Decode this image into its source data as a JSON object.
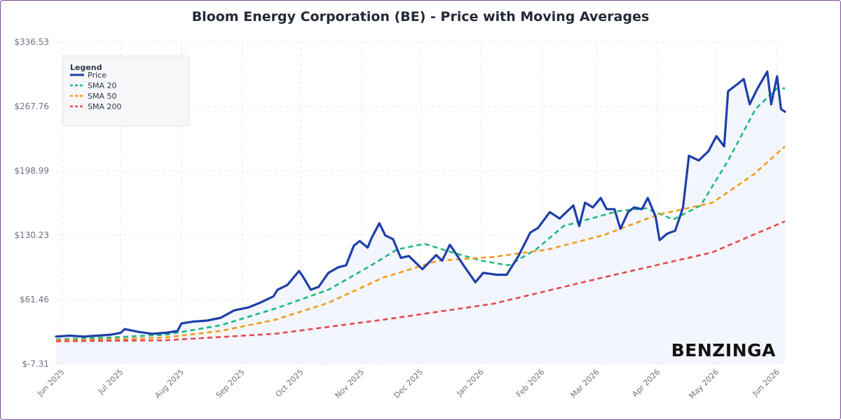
{
  "chart_data": {
    "type": "line",
    "title": "Bloom Energy Corporation (BE) - Price with Moving Averages",
    "xlabel": "",
    "ylabel": "",
    "ylim": [
      -7.31,
      336.53
    ],
    "y_ticks": [
      "$-7.31",
      "$61.46",
      "$130.23",
      "$198.99",
      "$267.76",
      "$336.53"
    ],
    "x_ticks": [
      "Jun 2025",
      "Jul 2025",
      "Aug 2025",
      "Sep 2025",
      "Oct 2025",
      "Nov 2025",
      "Dec 2025",
      "Jan 2026",
      "Feb 2026",
      "Mar 2026",
      "Apr 2026",
      "May 2026",
      "Jun 2026"
    ],
    "x_range": [
      "2025-05-29",
      "2026-06-05"
    ],
    "grid": true,
    "legend_title": "Legend",
    "legend_position": "top-left",
    "watermark": "BENZINGA",
    "series": [
      {
        "name": "Price",
        "color": "#1e3fa8",
        "style": "solid",
        "points": [
          [
            "2025-05-29",
            22
          ],
          [
            "2025-06-05",
            23
          ],
          [
            "2025-06-12",
            22
          ],
          [
            "2025-06-19",
            23
          ],
          [
            "2025-06-26",
            24
          ],
          [
            "2025-07-01",
            26
          ],
          [
            "2025-07-03",
            30
          ],
          [
            "2025-07-10",
            27
          ],
          [
            "2025-07-17",
            25
          ],
          [
            "2025-07-24",
            26
          ],
          [
            "2025-07-30",
            28
          ],
          [
            "2025-08-01",
            36
          ],
          [
            "2025-08-07",
            38
          ],
          [
            "2025-08-14",
            39
          ],
          [
            "2025-08-21",
            42
          ],
          [
            "2025-08-28",
            50
          ],
          [
            "2025-09-04",
            53
          ],
          [
            "2025-09-10",
            58
          ],
          [
            "2025-09-17",
            65
          ],
          [
            "2025-09-19",
            72
          ],
          [
            "2025-09-24",
            77
          ],
          [
            "2025-09-30",
            92
          ],
          [
            "2025-10-02",
            86
          ],
          [
            "2025-10-06",
            72
          ],
          [
            "2025-10-10",
            75
          ],
          [
            "2025-10-15",
            90
          ],
          [
            "2025-10-20",
            96
          ],
          [
            "2025-10-24",
            98
          ],
          [
            "2025-10-28",
            119
          ],
          [
            "2025-10-31",
            124
          ],
          [
            "2025-11-04",
            117
          ],
          [
            "2025-11-06",
            127
          ],
          [
            "2025-11-10",
            143
          ],
          [
            "2025-11-13",
            130
          ],
          [
            "2025-11-17",
            126
          ],
          [
            "2025-11-21",
            106
          ],
          [
            "2025-11-25",
            108
          ],
          [
            "2025-12-02",
            94
          ],
          [
            "2025-12-09",
            109
          ],
          [
            "2025-12-12",
            103
          ],
          [
            "2025-12-16",
            120
          ],
          [
            "2025-12-18",
            114
          ],
          [
            "2025-12-23",
            98
          ],
          [
            "2025-12-29",
            80
          ],
          [
            "2026-01-02",
            90
          ],
          [
            "2026-01-09",
            88
          ],
          [
            "2026-01-14",
            88
          ],
          [
            "2026-01-20",
            108
          ],
          [
            "2026-01-26",
            133
          ],
          [
            "2026-01-30",
            138
          ],
          [
            "2026-02-05",
            155
          ],
          [
            "2026-02-10",
            148
          ],
          [
            "2026-02-17",
            162
          ],
          [
            "2026-02-20",
            140
          ],
          [
            "2026-02-23",
            165
          ],
          [
            "2026-02-27",
            160
          ],
          [
            "2026-03-03",
            170
          ],
          [
            "2026-03-06",
            158
          ],
          [
            "2026-03-10",
            158
          ],
          [
            "2026-03-13",
            137
          ],
          [
            "2026-03-17",
            155
          ],
          [
            "2026-03-20",
            160
          ],
          [
            "2026-03-24",
            158
          ],
          [
            "2026-03-27",
            170
          ],
          [
            "2026-03-31",
            150
          ],
          [
            "2026-04-02",
            125
          ],
          [
            "2026-04-06",
            132
          ],
          [
            "2026-04-10",
            135
          ],
          [
            "2026-04-14",
            160
          ],
          [
            "2026-04-17",
            215
          ],
          [
            "2026-04-22",
            210
          ],
          [
            "2026-04-27",
            220
          ],
          [
            "2026-05-01",
            236
          ],
          [
            "2026-05-05",
            225
          ],
          [
            "2026-05-07",
            284
          ],
          [
            "2026-05-12",
            292
          ],
          [
            "2026-05-15",
            297
          ],
          [
            "2026-05-18",
            270
          ],
          [
            "2026-05-22",
            287
          ],
          [
            "2026-05-27",
            305
          ],
          [
            "2026-05-29",
            270
          ],
          [
            "2026-06-01",
            300
          ],
          [
            "2026-06-03",
            265
          ],
          [
            "2026-06-05",
            262
          ]
        ]
      },
      {
        "name": "SMA 20",
        "color": "#1fb87f",
        "style": "dashed",
        "points": [
          [
            "2025-05-29",
            19
          ],
          [
            "2025-06-26",
            21
          ],
          [
            "2025-07-24",
            24
          ],
          [
            "2025-08-21",
            34
          ],
          [
            "2025-09-18",
            52
          ],
          [
            "2025-10-15",
            72
          ],
          [
            "2025-11-05",
            97
          ],
          [
            "2025-11-19",
            115
          ],
          [
            "2025-12-03",
            121
          ],
          [
            "2025-12-17",
            112
          ],
          [
            "2026-01-01",
            103
          ],
          [
            "2026-01-15",
            98
          ],
          [
            "2026-01-29",
            115
          ],
          [
            "2026-02-12",
            140
          ],
          [
            "2026-02-26",
            148
          ],
          [
            "2026-03-12",
            156
          ],
          [
            "2026-03-26",
            159
          ],
          [
            "2026-04-09",
            147
          ],
          [
            "2026-04-23",
            162
          ],
          [
            "2026-05-07",
            210
          ],
          [
            "2026-05-21",
            265
          ],
          [
            "2026-06-01",
            287
          ],
          [
            "2026-06-05",
            287
          ]
        ]
      },
      {
        "name": "SMA 50",
        "color": "#f29b1d",
        "style": "dashed",
        "points": [
          [
            "2025-05-29",
            18
          ],
          [
            "2025-06-26",
            19
          ],
          [
            "2025-07-24",
            21
          ],
          [
            "2025-08-21",
            28
          ],
          [
            "2025-09-18",
            40
          ],
          [
            "2025-10-15",
            58
          ],
          [
            "2025-11-12",
            85
          ],
          [
            "2025-12-10",
            103
          ],
          [
            "2026-01-07",
            107
          ],
          [
            "2026-02-04",
            115
          ],
          [
            "2026-03-04",
            130
          ],
          [
            "2026-04-01",
            152
          ],
          [
            "2026-04-29",
            165
          ],
          [
            "2026-05-20",
            195
          ],
          [
            "2026-06-05",
            225
          ]
        ]
      },
      {
        "name": "SMA 200",
        "color": "#e5484d",
        "style": "dashed",
        "points": [
          [
            "2025-05-29",
            17
          ],
          [
            "2025-07-24",
            18
          ],
          [
            "2025-09-18",
            25
          ],
          [
            "2025-11-12",
            40
          ],
          [
            "2026-01-07",
            57
          ],
          [
            "2026-03-04",
            85
          ],
          [
            "2026-04-29",
            112
          ],
          [
            "2026-06-05",
            145
          ]
        ]
      }
    ]
  }
}
